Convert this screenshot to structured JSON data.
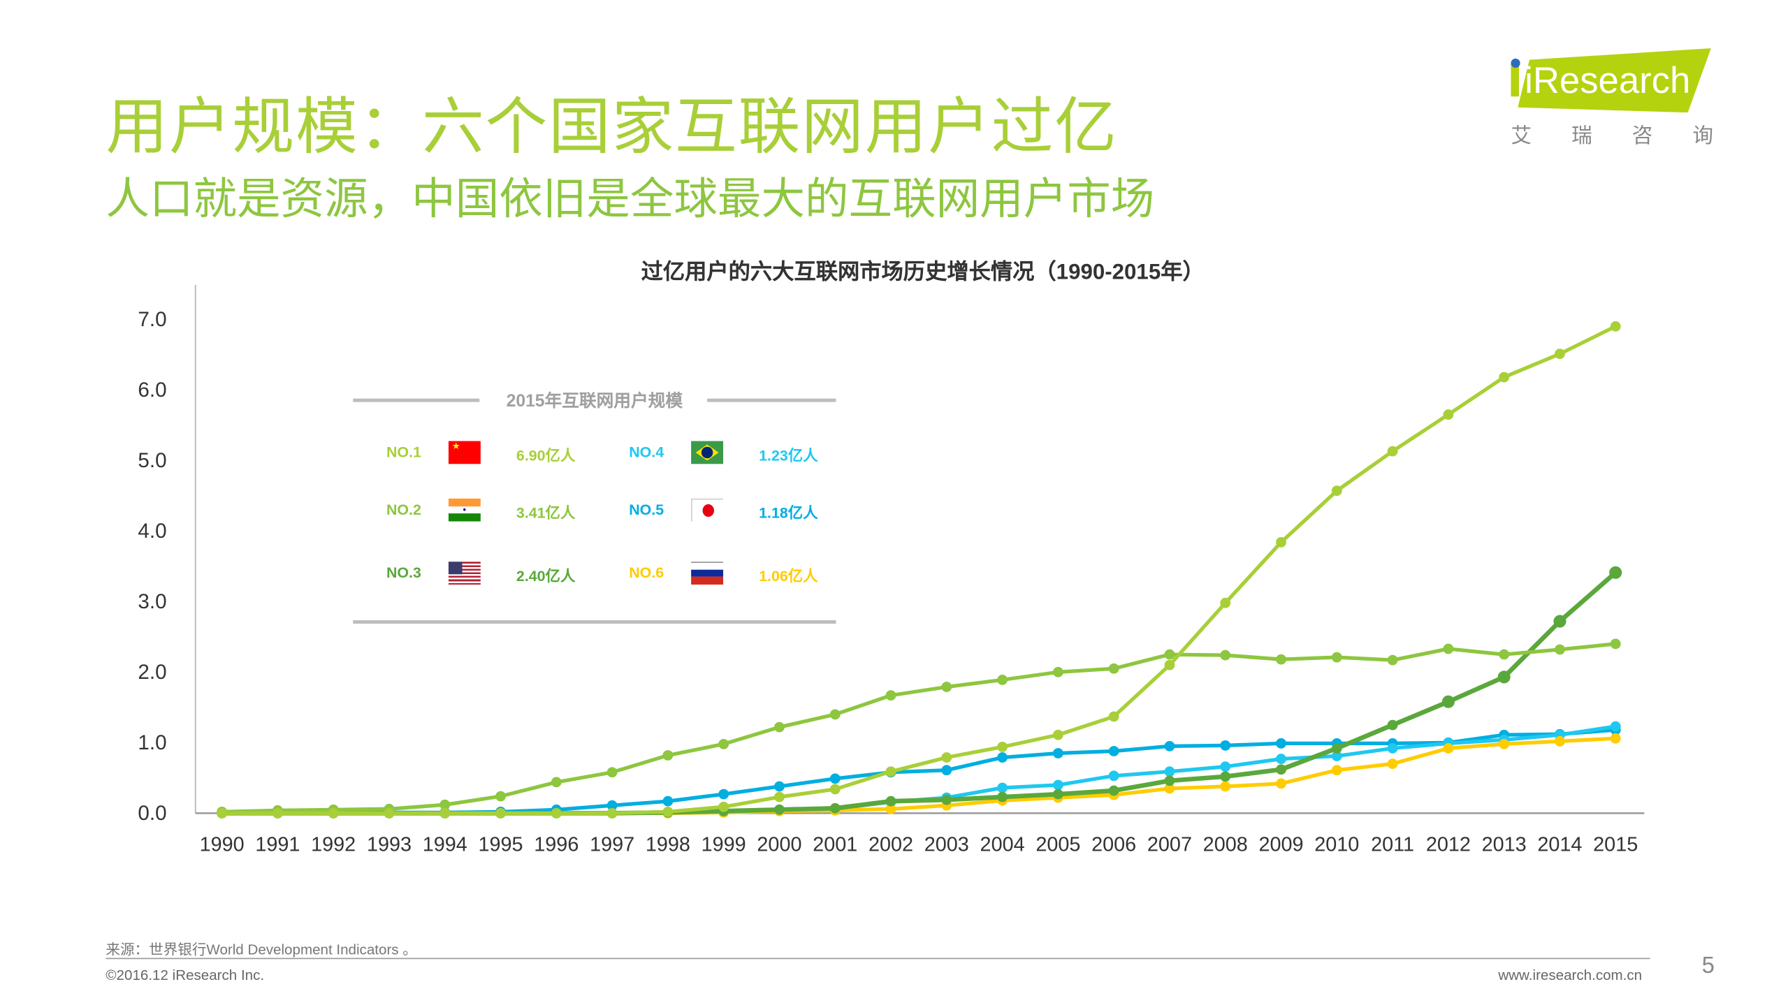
{
  "header": {
    "title": "用户规模：六个国家互联网用户过亿",
    "subtitle": "人口就是资源，中国依旧是全球最大的互联网用户市场"
  },
  "logo": {
    "brand": "iResearch",
    "chinese": [
      "艾",
      "瑞",
      "咨",
      "询"
    ]
  },
  "legend": {
    "title": "2015年互联网用户规模",
    "items": [
      {
        "rank": "NO.1",
        "value": "6.90亿人",
        "color": "#a8cf38",
        "flag": "china-flag"
      },
      {
        "rank": "NO.2",
        "value": "3.41亿人",
        "color": "#8dc63f",
        "flag": "india-flag"
      },
      {
        "rank": "NO.3",
        "value": "2.40亿人",
        "color": "#5aa83c",
        "flag": "usa-flag"
      },
      {
        "rank": "NO.4",
        "value": "1.23亿人",
        "color": "#1ec8f0",
        "flag": "brazil-flag"
      },
      {
        "rank": "NO.5",
        "value": "1.18亿人",
        "color": "#00aee0",
        "flag": "japan-flag"
      },
      {
        "rank": "NO.6",
        "value": "1.06亿人",
        "color": "#ffcc00",
        "flag": "russia-flag"
      }
    ]
  },
  "chart_data": {
    "type": "line",
    "title": "过亿用户的六大互联网市场历史增长情况（1990-2015年）",
    "xlabel": "",
    "ylabel": "",
    "ylim": [
      0,
      7
    ],
    "yticks": [
      "0.0",
      "1.0",
      "2.0",
      "3.0",
      "4.0",
      "5.0",
      "6.0",
      "7.0"
    ],
    "categories": [
      "1990",
      "1991",
      "1992",
      "1993",
      "1994",
      "1995",
      "1996",
      "1997",
      "1998",
      "1999",
      "2000",
      "2001",
      "2002",
      "2003",
      "2004",
      "2005",
      "2006",
      "2007",
      "2008",
      "2009",
      "2010",
      "2011",
      "2012",
      "2013",
      "2014",
      "2015"
    ],
    "series": [
      {
        "name": "NO.1",
        "color": "#a8cf38",
        "values": [
          0,
          0,
          0,
          0,
          0,
          0,
          0,
          0,
          0.02,
          0.09,
          0.23,
          0.34,
          0.59,
          0.79,
          0.94,
          1.11,
          1.37,
          2.1,
          2.98,
          3.84,
          4.57,
          5.13,
          5.65,
          6.18,
          6.51,
          6.9
        ]
      },
      {
        "name": "NO.3",
        "color": "#8dc63f",
        "values": [
          0.02,
          0.04,
          0.05,
          0.06,
          0.12,
          0.24,
          0.44,
          0.58,
          0.82,
          0.98,
          1.22,
          1.4,
          1.67,
          1.79,
          1.89,
          2.0,
          2.05,
          2.25,
          2.24,
          2.18,
          2.21,
          2.17,
          2.33,
          2.25,
          2.32,
          2.4
        ]
      },
      {
        "name": "NO.2",
        "color": "#5aa83c",
        "values": [
          0,
          0,
          0,
          0,
          0,
          0,
          0,
          0,
          0.01,
          0.03,
          0.05,
          0.07,
          0.17,
          0.19,
          0.23,
          0.27,
          0.32,
          0.46,
          0.52,
          0.62,
          0.92,
          1.25,
          1.58,
          1.93,
          2.72,
          3.41
        ]
      },
      {
        "name": "NO.4",
        "color": "#1ec8f0",
        "values": [
          0,
          0,
          0,
          0,
          0,
          0,
          0,
          0,
          0.01,
          0.03,
          0.05,
          0.06,
          0.16,
          0.22,
          0.36,
          0.4,
          0.53,
          0.59,
          0.66,
          0.77,
          0.81,
          0.92,
          0.99,
          1.04,
          1.11,
          1.23
        ]
      },
      {
        "name": "NO.5",
        "color": "#00aee0",
        "values": [
          0.01,
          0.01,
          0.01,
          0.01,
          0.01,
          0.02,
          0.05,
          0.11,
          0.17,
          0.27,
          0.38,
          0.49,
          0.58,
          0.61,
          0.79,
          0.85,
          0.88,
          0.95,
          0.96,
          0.99,
          0.99,
          0.99,
          1.0,
          1.11,
          1.12,
          1.18
        ]
      },
      {
        "name": "NO.6",
        "color": "#ffcc00",
        "values": [
          0,
          0,
          0,
          0,
          0,
          0,
          0,
          0,
          0,
          0.01,
          0.03,
          0.04,
          0.06,
          0.11,
          0.18,
          0.22,
          0.26,
          0.35,
          0.38,
          0.42,
          0.61,
          0.7,
          0.92,
          0.98,
          1.02,
          1.06
        ]
      }
    ]
  },
  "footer": {
    "source": "来源：世界银行World Development Indicators 。",
    "copyright": "©2016.12 iResearch Inc.",
    "url": "www.iresearch.com.cn",
    "page": "5"
  }
}
